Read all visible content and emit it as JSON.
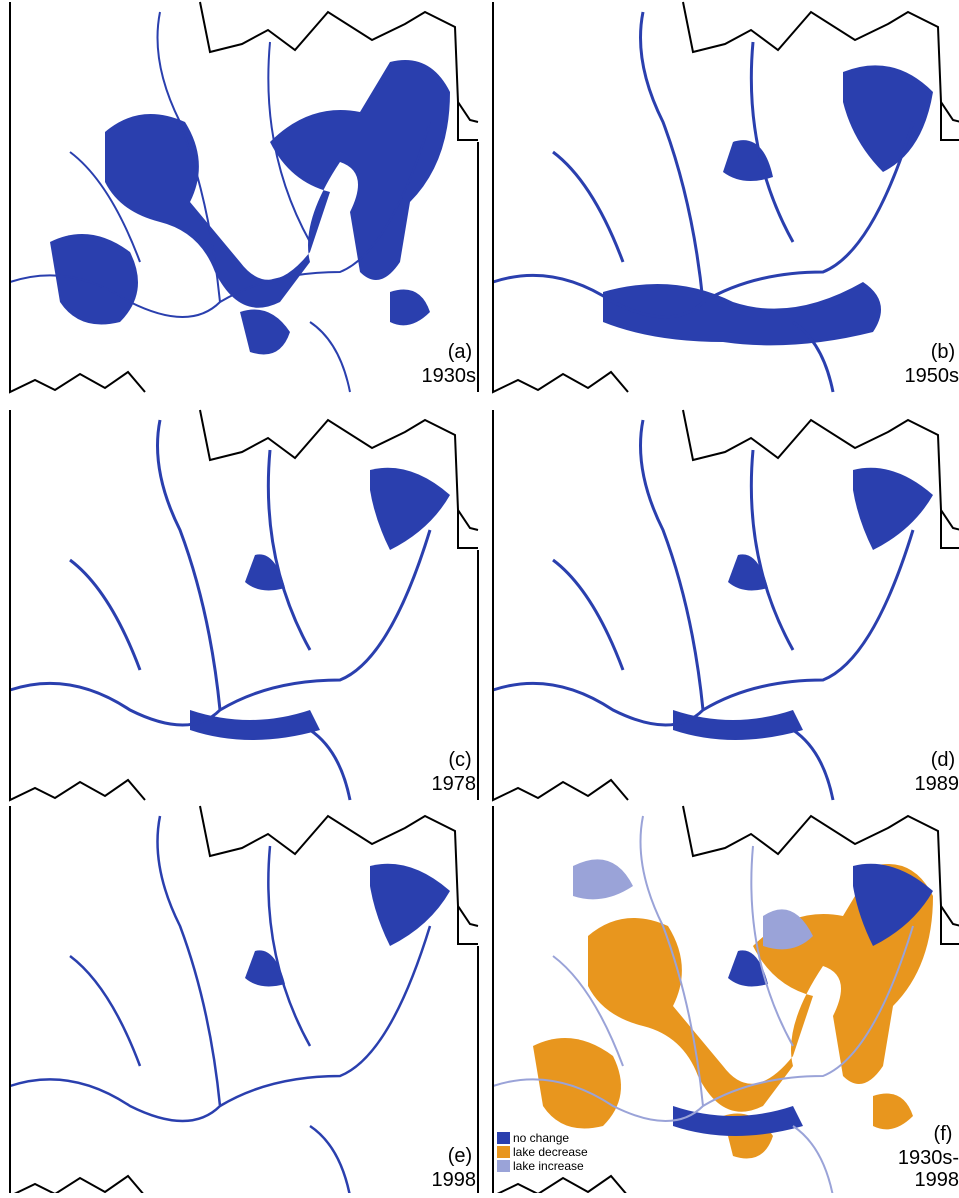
{
  "panels": [
    {
      "label": "(a)",
      "period": [
        "1930s"
      ]
    },
    {
      "label": "(b)",
      "period": [
        "1950s"
      ]
    },
    {
      "label": "(c)",
      "period": [
        "1978"
      ]
    },
    {
      "label": "(d)",
      "period": [
        "1989"
      ]
    },
    {
      "label": "(e)",
      "period": [
        "1998"
      ]
    },
    {
      "label": "(f)",
      "period": [
        "1930s-",
        "1998"
      ]
    }
  ],
  "legend": [
    {
      "name": "no change",
      "color": "#2a3fae"
    },
    {
      "name": "lake decrease",
      "color": "#e8961e"
    },
    {
      "name": "lake increase",
      "color": "#9aa3d8"
    }
  ]
}
